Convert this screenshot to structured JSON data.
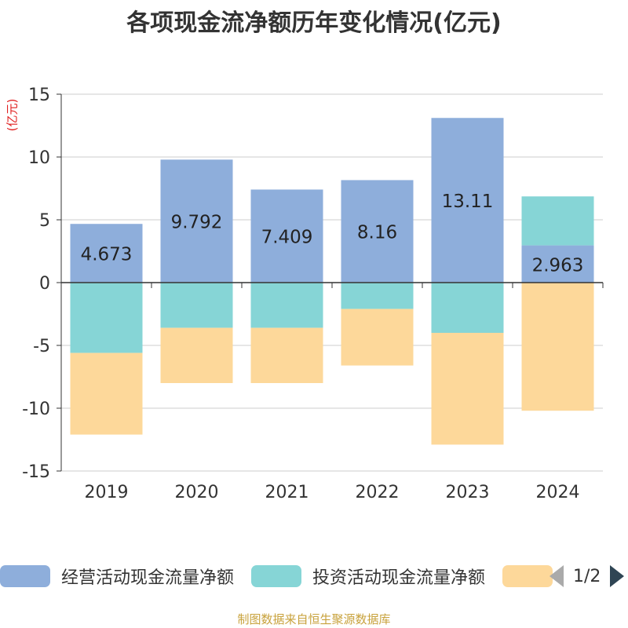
{
  "title": "各项现金流净额历年变化情况(亿元)",
  "unit_label": "(亿元)",
  "source": "制图数据来自恒生聚源数据库",
  "pager": {
    "text": "1/2"
  },
  "colors": {
    "operating": "#8eaedb",
    "investing": "#86d5d6",
    "financing": "#fdd89a",
    "grid": "#cccccc",
    "axis": "#333333",
    "tick_text": "#333333"
  },
  "legend": [
    {
      "label": "经营活动现金流量净额",
      "color": "#8eaedb"
    },
    {
      "label": "投资活动现金流量净额",
      "color": "#86d5d6"
    },
    {
      "label": "",
      "color": "#fdd89a"
    }
  ],
  "chart_data": {
    "type": "bar",
    "stacked": true,
    "categories": [
      "2019",
      "2020",
      "2021",
      "2022",
      "2023",
      "2024"
    ],
    "ylim": [
      -15,
      15
    ],
    "yticks": [
      15,
      10,
      5,
      0,
      -5,
      -10,
      -15
    ],
    "grid": true,
    "legend_position": "bottom",
    "series": [
      {
        "name": "经营活动现金流量净额",
        "values": [
          4.673,
          9.792,
          7.409,
          8.16,
          13.11,
          2.963
        ],
        "labels": [
          "4.673",
          "9.792",
          "7.409",
          "8.16",
          "13.11",
          "2.963"
        ]
      },
      {
        "name": "投资活动现金流量净额",
        "values": [
          -5.6,
          -3.6,
          -3.6,
          -2.1,
          -4.0,
          3.9
        ]
      },
      {
        "values": [
          -6.5,
          -4.4,
          -4.4,
          -4.5,
          -8.9,
          -10.2
        ]
      }
    ]
  }
}
